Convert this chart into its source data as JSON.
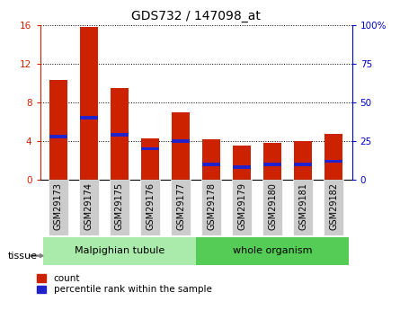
{
  "title": "GDS732 / 147098_at",
  "samples": [
    "GSM29173",
    "GSM29174",
    "GSM29175",
    "GSM29176",
    "GSM29177",
    "GSM29178",
    "GSM29179",
    "GSM29180",
    "GSM29181",
    "GSM29182"
  ],
  "count_values": [
    10.3,
    15.8,
    9.5,
    4.3,
    7.0,
    4.2,
    3.5,
    3.8,
    4.0,
    4.7
  ],
  "percentile_values": [
    28,
    40,
    29,
    20,
    25,
    10,
    8,
    10,
    10,
    12
  ],
  "groups": [
    {
      "label": "Malpighian tubule",
      "start": 0,
      "end": 5,
      "color": "#aaeaaa"
    },
    {
      "label": "whole organism",
      "start": 5,
      "end": 10,
      "color": "#55cc55"
    }
  ],
  "left_ylim": [
    0,
    16
  ],
  "left_yticks": [
    0,
    4,
    8,
    12,
    16
  ],
  "right_ylim": [
    0,
    100
  ],
  "right_yticks": [
    0,
    25,
    50,
    75,
    100
  ],
  "left_tick_color": "#cc2200",
  "right_tick_color": "#0000cc",
  "bar_color_red": "#cc2200",
  "bar_color_blue": "#2222cc",
  "bar_width": 0.6,
  "grid_color": "black",
  "bg_color": "#ffffff",
  "group_bar_bg": "#cccccc",
  "tissue_label": "tissue",
  "legend_count_label": "count",
  "legend_pct_label": "percentile rank within the sample",
  "figure_width": 4.45,
  "figure_height": 3.45
}
